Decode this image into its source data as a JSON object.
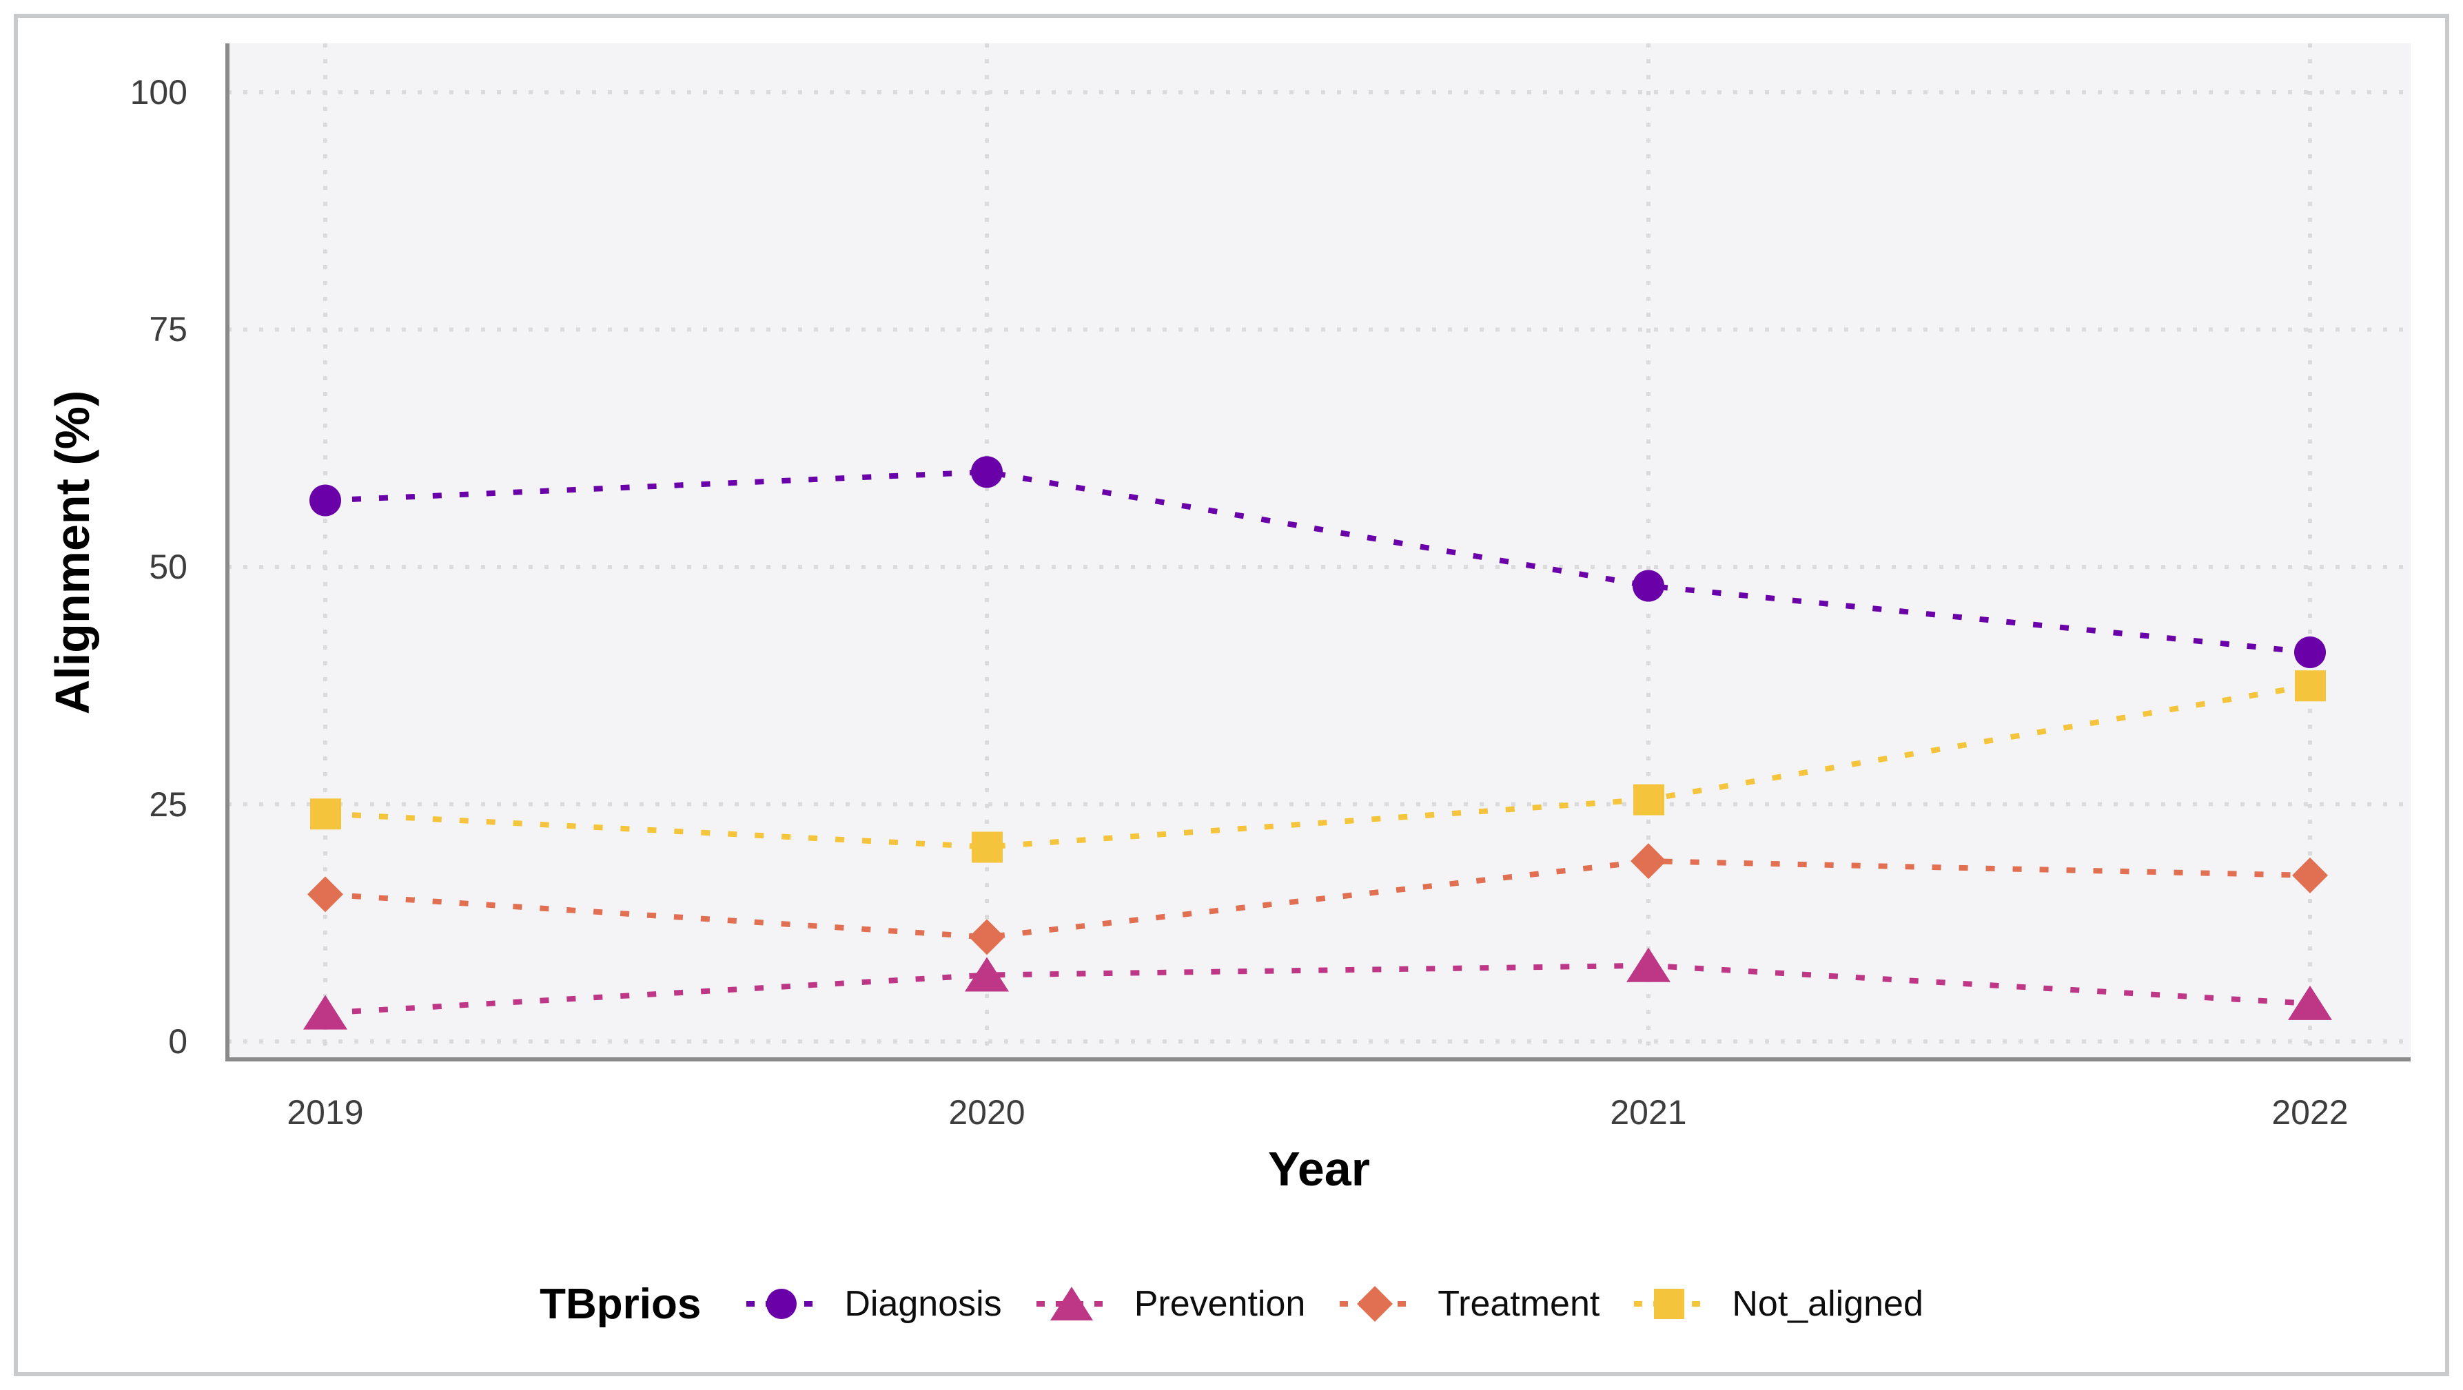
{
  "figure": {
    "y_axis_title": "Alignment (%)",
    "x_axis_title": "Year",
    "legend_title": "TBprios",
    "y_tick_labels": [
      "100",
      "75",
      "50",
      "25",
      "0"
    ],
    "x_tick_labels": [
      "2019",
      "2020",
      "2021",
      "2022"
    ]
  },
  "style": {
    "panel_background": "#F4F4F6",
    "gridline_color": "#DBDBDB",
    "axis_line_color": "#8A8A8A",
    "tick_label_color": "#3D3D3D"
  },
  "chart_data": {
    "type": "line",
    "title": "",
    "xlabel": "Year",
    "ylabel": "Alignment (%)",
    "x": [
      2019,
      2020,
      2021,
      2022
    ],
    "ylim": [
      0,
      100
    ],
    "y_ticks": [
      0,
      25,
      50,
      75,
      100
    ],
    "grid": "dotted",
    "line_style": "dotted",
    "legend_position": "bottom",
    "legend_title": "TBprios",
    "series": [
      {
        "name": "Diagnosis",
        "marker": "circle",
        "color": "#6900A8",
        "values": [
          57,
          60,
          48,
          41
        ]
      },
      {
        "name": "Prevention",
        "marker": "triangle",
        "color": "#BD3786",
        "values": [
          3,
          7,
          8,
          4
        ]
      },
      {
        "name": "Treatment",
        "marker": "diamond",
        "color": "#E16F52",
        "values": [
          15.5,
          11,
          19,
          17.5
        ]
      },
      {
        "name": "Not_aligned",
        "marker": "square",
        "color": "#F4C53C",
        "values": [
          24,
          20.5,
          25.5,
          37.5
        ]
      }
    ]
  }
}
